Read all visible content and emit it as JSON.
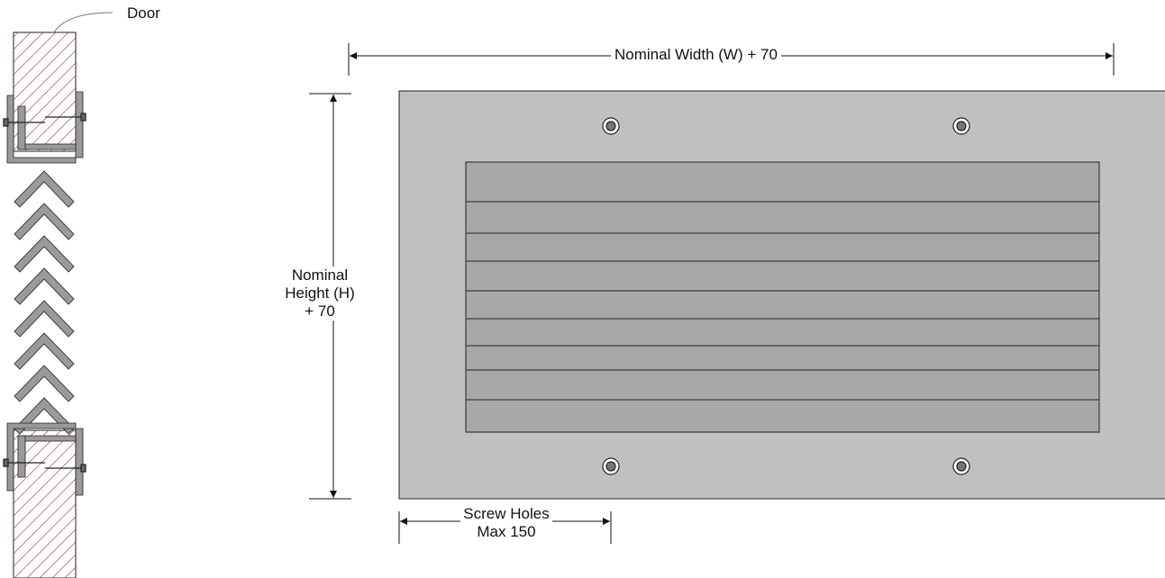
{
  "labels": {
    "door": "Door",
    "width_dim": "Nominal Width (W) + 70",
    "height_dim_line1": "Nominal",
    "height_dim_line2": "Height (H)",
    "height_dim_line3": "+ 70",
    "screw_line1": "Screw Holes",
    "screw_line2": "Max 150"
  },
  "colors": {
    "plate": "#c0c0c0",
    "louver_blade": "#a8a8a8",
    "hatch": "#8b2b2b",
    "outline": "#222222",
    "frame_metal": "#9a9a9a"
  },
  "louver": {
    "blade_count": 9,
    "screw_hole_count": 4
  }
}
